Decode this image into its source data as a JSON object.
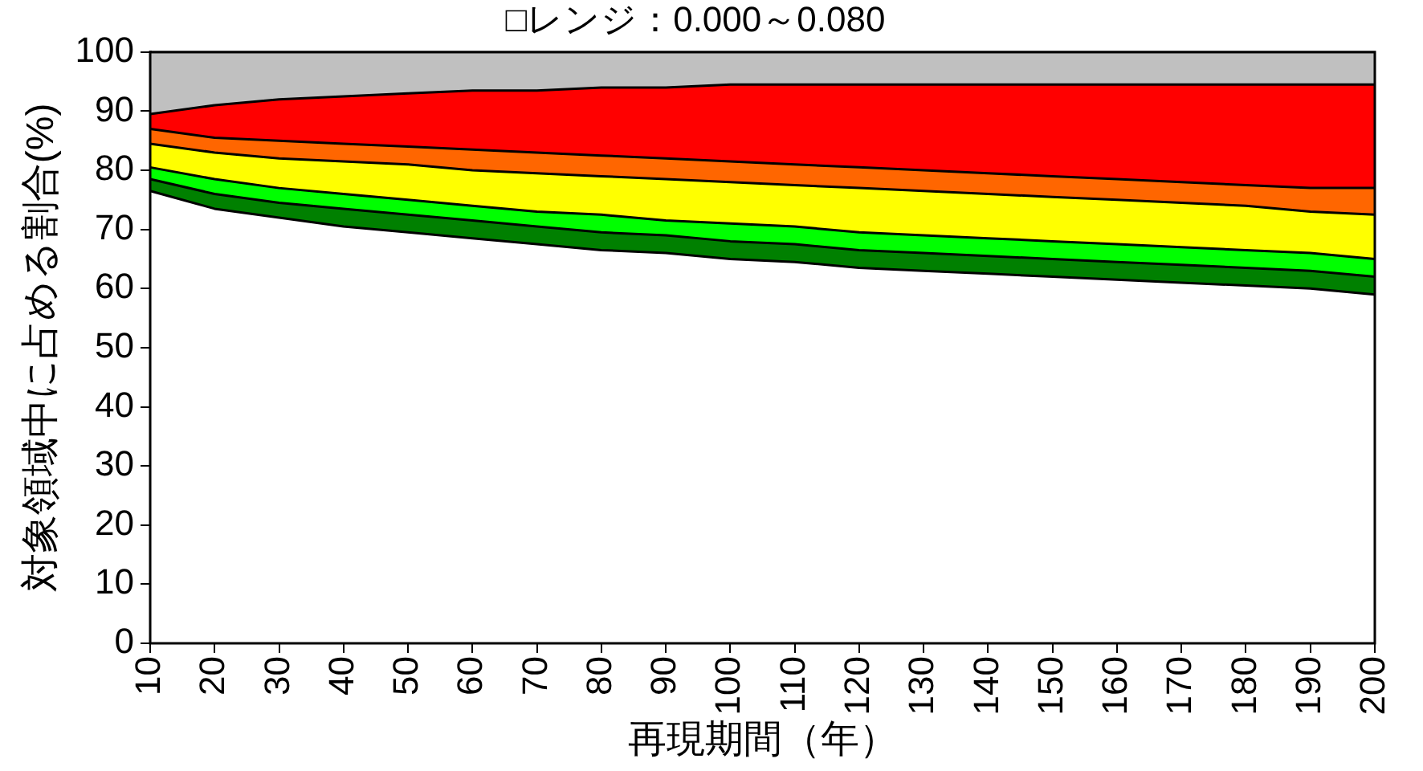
{
  "chart_data": {
    "type": "area",
    "title": "□レンジ：0.000～0.080",
    "xlabel": "再現期間（年）",
    "ylabel": "対象領域中に占める割合(%)",
    "categories": [
      "10",
      "20",
      "30",
      "40",
      "50",
      "60",
      "70",
      "80",
      "90",
      "100",
      "110",
      "120",
      "130",
      "140",
      "150",
      "160",
      "170",
      "180",
      "190",
      "200"
    ],
    "stacked": true,
    "ylim": [
      0,
      100
    ],
    "yticks": [
      0,
      10,
      20,
      30,
      40,
      50,
      60,
      70,
      80,
      90,
      100
    ],
    "legend": false,
    "marker": "none",
    "series": [
      {
        "color": "#ffffff",
        "values": [
          76.5,
          73.5,
          72,
          70.5,
          69.5,
          68.5,
          67.5,
          66.5,
          66,
          65,
          64.5,
          63.5,
          63,
          62.5,
          62,
          61.5,
          61,
          60.5,
          60,
          59
        ]
      },
      {
        "color": "#008000",
        "values": [
          2,
          2.5,
          2.5,
          3,
          3,
          3,
          3,
          3,
          3,
          3,
          3,
          3,
          3,
          3,
          3,
          3,
          3,
          3,
          3,
          3
        ]
      },
      {
        "color": "#00ff00",
        "values": [
          2,
          2.5,
          2.5,
          2.5,
          2.5,
          2.5,
          2.5,
          3,
          2.5,
          3,
          3,
          3,
          3,
          3,
          3,
          3,
          3,
          3,
          3,
          3
        ]
      },
      {
        "color": "#ffff00",
        "values": [
          4,
          4.5,
          5,
          5.5,
          6,
          6,
          6.5,
          6.5,
          7,
          7,
          7,
          7.5,
          7.5,
          7.5,
          7.5,
          7.5,
          7.5,
          7.5,
          7,
          7.5
        ]
      },
      {
        "color": "#ff6600",
        "values": [
          2.5,
          2.5,
          3,
          3,
          3,
          3.5,
          3.5,
          3.5,
          3.5,
          3.5,
          3.5,
          3.5,
          3.5,
          3.5,
          3.5,
          3.5,
          3.5,
          3.5,
          4,
          4.5
        ]
      },
      {
        "color": "#ff0000",
        "values": [
          2.5,
          5.5,
          7,
          8,
          9,
          10,
          10.5,
          11.5,
          12,
          13,
          13.5,
          14,
          14.5,
          15,
          15.5,
          16,
          16.5,
          17,
          17.5,
          17.5
        ]
      },
      {
        "color": "#c0c0c0",
        "values": [
          10.5,
          9,
          8,
          7.5,
          7,
          6.5,
          6.5,
          6,
          6,
          5.5,
          5.5,
          5.5,
          5.5,
          5.5,
          5.5,
          5.5,
          5.5,
          5.5,
          5.5,
          5.5
        ]
      }
    ]
  }
}
